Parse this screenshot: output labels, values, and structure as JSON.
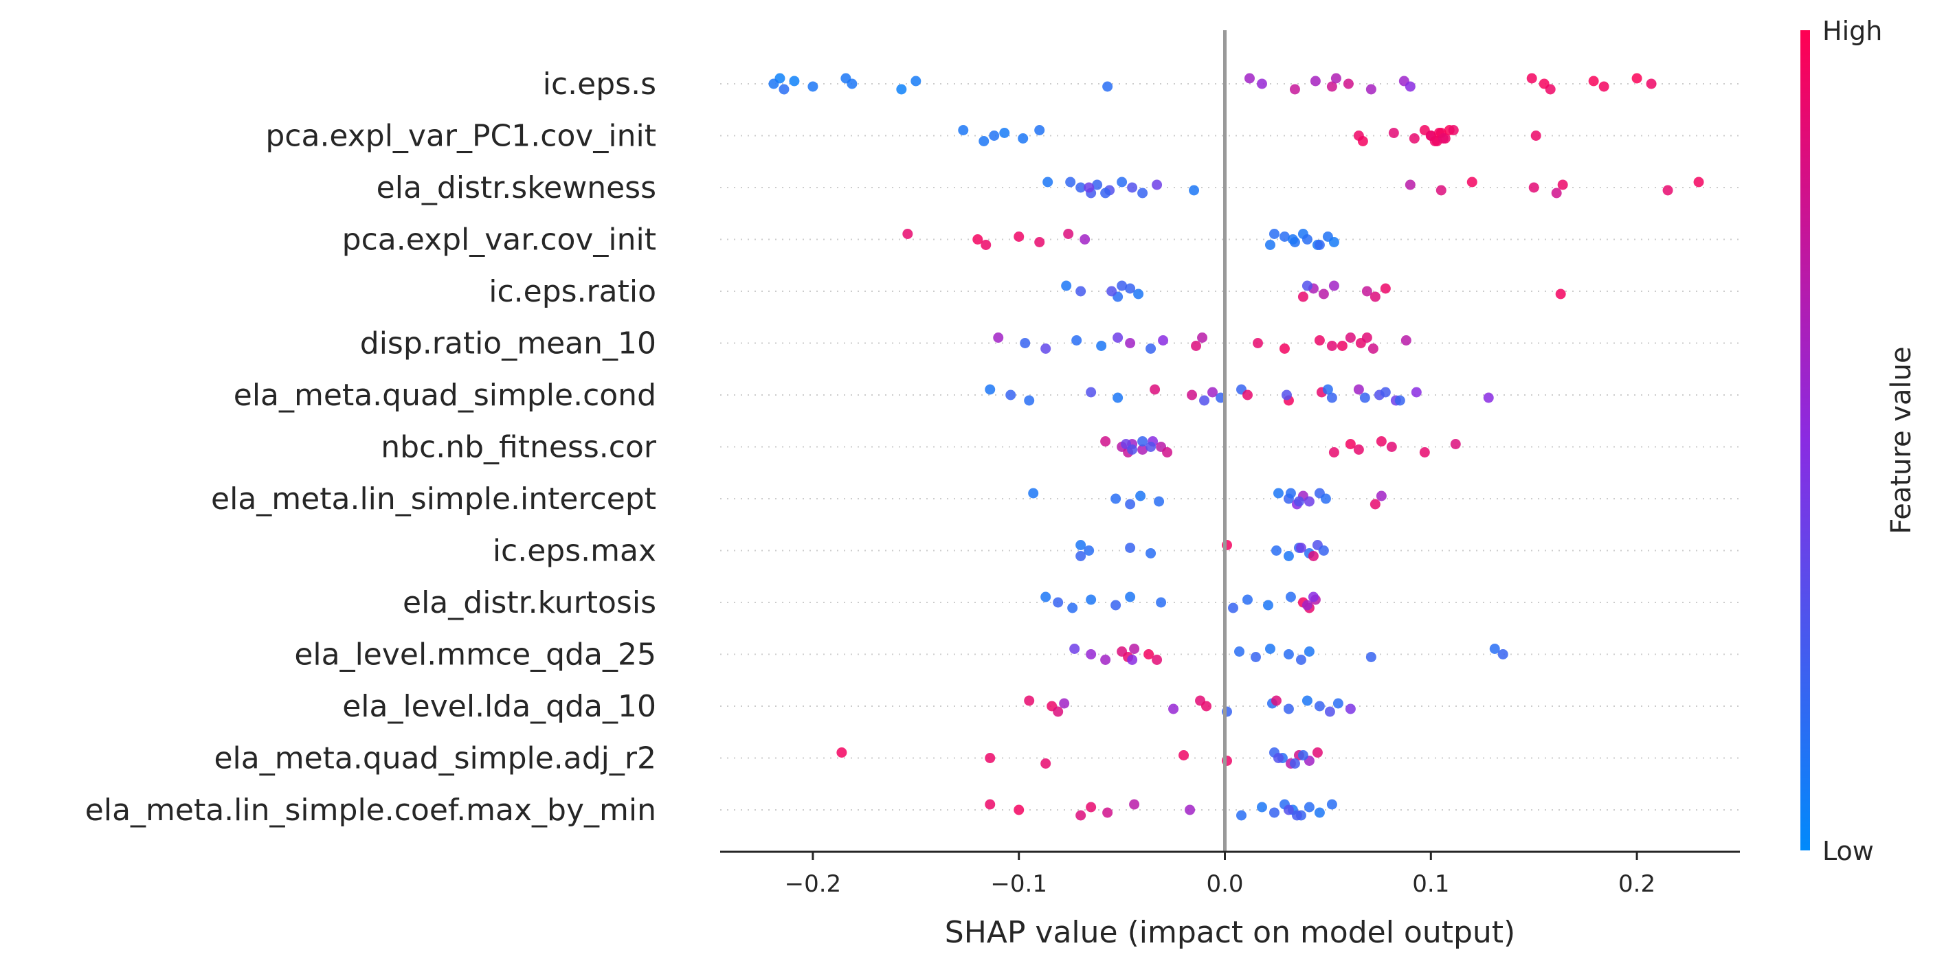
{
  "chart_data": {
    "type": "scatter",
    "subtype": "shap-beeswarm",
    "title": "",
    "xlabel": "SHAP value (impact on model output)",
    "xlim": [
      -0.245,
      0.25
    ],
    "xticks": [
      -0.2,
      -0.1,
      0.0,
      0.1,
      0.2
    ],
    "xtick_labels": [
      "−0.2",
      "−0.1",
      "0.0",
      "0.1",
      "0.2"
    ],
    "zero_line": true,
    "grid": false,
    "colorbar": {
      "title": "Feature value",
      "high_label": "High",
      "low_label": "Low",
      "low_color": "#008afb",
      "mid_color": "#8a2be2",
      "high_color": "#ff0052"
    },
    "features": [
      {
        "name": "ic.eps.s",
        "points": [
          [
            -0.216,
            0.05
          ],
          [
            -0.219,
            0.1
          ],
          [
            -0.214,
            0.15
          ],
          [
            -0.209,
            0.05
          ],
          [
            -0.2,
            0.1
          ],
          [
            -0.184,
            0.1
          ],
          [
            -0.181,
            0.1
          ],
          [
            -0.157,
            0.05
          ],
          [
            -0.15,
            0.08
          ],
          [
            -0.057,
            0.15
          ],
          [
            0.012,
            0.6
          ],
          [
            0.018,
            0.55
          ],
          [
            0.034,
            0.75
          ],
          [
            0.044,
            0.62
          ],
          [
            0.052,
            0.78
          ],
          [
            0.054,
            0.66
          ],
          [
            0.06,
            0.8
          ],
          [
            0.071,
            0.62
          ],
          [
            0.087,
            0.58
          ],
          [
            0.09,
            0.5
          ],
          [
            0.149,
            0.95
          ],
          [
            0.155,
            0.96
          ],
          [
            0.158,
            0.93
          ],
          [
            0.179,
            0.97
          ],
          [
            0.184,
            0.95
          ],
          [
            0.2,
            0.98
          ],
          [
            0.207,
            0.93
          ]
        ]
      },
      {
        "name": "pca.expl_var_PC1.cov_init",
        "points": [
          [
            -0.127,
            0.1
          ],
          [
            -0.112,
            0.12
          ],
          [
            -0.117,
            0.1
          ],
          [
            -0.107,
            0.08
          ],
          [
            -0.098,
            0.1
          ],
          [
            -0.09,
            0.12
          ],
          [
            0.065,
            0.93
          ],
          [
            0.067,
            0.95
          ],
          [
            0.082,
            0.88
          ],
          [
            0.092,
            0.9
          ],
          [
            0.097,
            0.95
          ],
          [
            0.1,
            0.92
          ],
          [
            0.103,
            0.94
          ],
          [
            0.105,
            0.96
          ],
          [
            0.107,
            0.92
          ],
          [
            0.109,
            0.98
          ],
          [
            0.1,
            0.91
          ],
          [
            0.102,
            0.93
          ],
          [
            0.104,
            0.95
          ],
          [
            0.106,
            0.9
          ],
          [
            0.111,
            0.92
          ],
          [
            0.151,
            0.92
          ]
        ]
      },
      {
        "name": "ela_distr.skewness",
        "points": [
          [
            -0.086,
            0.1
          ],
          [
            -0.07,
            0.2
          ],
          [
            -0.065,
            0.25
          ],
          [
            -0.062,
            0.2
          ],
          [
            -0.056,
            0.3
          ],
          [
            -0.05,
            0.15
          ],
          [
            -0.045,
            0.3
          ],
          [
            -0.04,
            0.2
          ],
          [
            -0.033,
            0.4
          ],
          [
            -0.015,
            0.1
          ],
          [
            -0.075,
            0.18
          ],
          [
            -0.066,
            0.4
          ],
          [
            -0.058,
            0.2
          ],
          [
            0.09,
            0.7
          ],
          [
            0.105,
            0.85
          ],
          [
            0.12,
            0.95
          ],
          [
            0.15,
            0.88
          ],
          [
            0.161,
            0.8
          ],
          [
            0.164,
            0.92
          ],
          [
            0.215,
            0.9
          ],
          [
            0.23,
            0.95
          ]
        ]
      },
      {
        "name": "pca.expl_var.cov_init",
        "points": [
          [
            -0.154,
            0.9
          ],
          [
            -0.12,
            0.95
          ],
          [
            -0.116,
            0.92
          ],
          [
            -0.1,
            0.93
          ],
          [
            -0.09,
            0.9
          ],
          [
            -0.076,
            0.85
          ],
          [
            -0.068,
            0.6
          ],
          [
            0.022,
            0.1
          ],
          [
            0.029,
            0.15
          ],
          [
            0.034,
            0.12
          ],
          [
            0.038,
            0.1
          ],
          [
            0.04,
            0.15
          ],
          [
            0.045,
            0.1
          ],
          [
            0.05,
            0.12
          ],
          [
            0.053,
            0.08
          ],
          [
            0.024,
            0.15
          ],
          [
            0.033,
            0.1
          ],
          [
            0.046,
            0.18
          ]
        ]
      },
      {
        "name": "ic.eps.ratio",
        "points": [
          [
            -0.077,
            0.1
          ],
          [
            -0.07,
            0.25
          ],
          [
            -0.052,
            0.15
          ],
          [
            -0.046,
            0.2
          ],
          [
            -0.042,
            0.1
          ],
          [
            -0.05,
            0.22
          ],
          [
            -0.055,
            0.3
          ],
          [
            0.038,
            0.9
          ],
          [
            0.043,
            0.65
          ],
          [
            0.048,
            0.7
          ],
          [
            0.053,
            0.6
          ],
          [
            0.069,
            0.75
          ],
          [
            0.073,
            0.85
          ],
          [
            0.078,
            0.92
          ],
          [
            0.163,
            0.95
          ],
          [
            0.04,
            0.3
          ]
        ]
      },
      {
        "name": "disp.ratio_mean_10",
        "points": [
          [
            -0.11,
            0.6
          ],
          [
            -0.097,
            0.2
          ],
          [
            -0.087,
            0.35
          ],
          [
            -0.072,
            0.15
          ],
          [
            -0.06,
            0.1
          ],
          [
            -0.052,
            0.4
          ],
          [
            -0.046,
            0.6
          ],
          [
            -0.036,
            0.2
          ],
          [
            -0.03,
            0.5
          ],
          [
            -0.014,
            0.85
          ],
          [
            -0.011,
            0.7
          ],
          [
            0.016,
            0.9
          ],
          [
            0.029,
            0.95
          ],
          [
            0.046,
            0.92
          ],
          [
            0.052,
            0.88
          ],
          [
            0.061,
            0.85
          ],
          [
            0.066,
            0.9
          ],
          [
            0.072,
            0.8
          ],
          [
            0.088,
            0.7
          ],
          [
            0.057,
            0.93
          ],
          [
            0.069,
            0.87
          ]
        ]
      },
      {
        "name": "ela_meta.quad_simple.cond",
        "points": [
          [
            -0.114,
            0.1
          ],
          [
            -0.104,
            0.2
          ],
          [
            -0.095,
            0.15
          ],
          [
            -0.065,
            0.3
          ],
          [
            -0.052,
            0.1
          ],
          [
            -0.034,
            0.85
          ],
          [
            -0.016,
            0.8
          ],
          [
            -0.01,
            0.3
          ],
          [
            -0.006,
            0.6
          ],
          [
            -0.002,
            0.2
          ],
          [
            0.008,
            0.2
          ],
          [
            0.011,
            0.9
          ],
          [
            0.031,
            0.95
          ],
          [
            0.047,
            0.9
          ],
          [
            0.052,
            0.2
          ],
          [
            0.065,
            0.6
          ],
          [
            0.075,
            0.3
          ],
          [
            0.083,
            0.4
          ],
          [
            0.093,
            0.5
          ],
          [
            0.128,
            0.5
          ],
          [
            0.05,
            0.15
          ],
          [
            0.03,
            0.3
          ],
          [
            0.085,
            0.2
          ],
          [
            0.078,
            0.25
          ],
          [
            0.068,
            0.2
          ]
        ]
      },
      {
        "name": "nbc.nb_fitness.cor",
        "points": [
          [
            -0.058,
            0.8
          ],
          [
            -0.05,
            0.7
          ],
          [
            -0.047,
            0.75
          ],
          [
            -0.045,
            0.6
          ],
          [
            -0.04,
            0.65
          ],
          [
            -0.035,
            0.5
          ],
          [
            -0.031,
            0.7
          ],
          [
            -0.028,
            0.8
          ],
          [
            -0.048,
            0.4
          ],
          [
            -0.045,
            0.3
          ],
          [
            -0.04,
            0.2
          ],
          [
            -0.036,
            0.3
          ],
          [
            0.053,
            0.9
          ],
          [
            0.061,
            0.95
          ],
          [
            0.065,
            0.9
          ],
          [
            0.076,
            0.92
          ],
          [
            0.081,
            0.88
          ],
          [
            0.097,
            0.9
          ],
          [
            0.112,
            0.85
          ]
        ]
      },
      {
        "name": "ela_meta.lin_simple.intercept",
        "points": [
          [
            -0.093,
            0.1
          ],
          [
            -0.053,
            0.15
          ],
          [
            -0.046,
            0.2
          ],
          [
            -0.041,
            0.1
          ],
          [
            -0.032,
            0.15
          ],
          [
            0.026,
            0.1
          ],
          [
            0.031,
            0.2
          ],
          [
            0.035,
            0.5
          ],
          [
            0.038,
            0.6
          ],
          [
            0.041,
            0.4
          ],
          [
            0.046,
            0.2
          ],
          [
            0.049,
            0.15
          ],
          [
            0.073,
            0.9
          ],
          [
            0.076,
            0.6
          ],
          [
            0.036,
            0.3
          ],
          [
            0.032,
            0.15
          ]
        ]
      },
      {
        "name": "ic.eps.max",
        "points": [
          [
            -0.07,
            0.1
          ],
          [
            -0.066,
            0.15
          ],
          [
            -0.07,
            0.2
          ],
          [
            -0.046,
            0.2
          ],
          [
            -0.036,
            0.15
          ],
          [
            0.001,
            0.95
          ],
          [
            0.025,
            0.15
          ],
          [
            0.031,
            0.1
          ],
          [
            0.036,
            0.2
          ],
          [
            0.041,
            0.15
          ],
          [
            0.045,
            0.3
          ],
          [
            0.048,
            0.2
          ],
          [
            0.043,
            0.85
          ],
          [
            0.037,
            0.4
          ]
        ]
      },
      {
        "name": "ela_distr.kurtosis",
        "points": [
          [
            -0.087,
            0.1
          ],
          [
            -0.081,
            0.2
          ],
          [
            -0.074,
            0.15
          ],
          [
            -0.065,
            0.1
          ],
          [
            -0.053,
            0.2
          ],
          [
            -0.046,
            0.1
          ],
          [
            -0.031,
            0.15
          ],
          [
            0.004,
            0.2
          ],
          [
            0.011,
            0.15
          ],
          [
            0.021,
            0.1
          ],
          [
            0.032,
            0.15
          ],
          [
            0.038,
            0.95
          ],
          [
            0.041,
            0.9
          ],
          [
            0.044,
            0.7
          ],
          [
            0.04,
            0.6
          ],
          [
            0.043,
            0.5
          ]
        ]
      },
      {
        "name": "ela_level.mmce_qda_25",
        "points": [
          [
            -0.073,
            0.4
          ],
          [
            -0.065,
            0.55
          ],
          [
            -0.058,
            0.6
          ],
          [
            -0.05,
            0.85
          ],
          [
            -0.047,
            0.9
          ],
          [
            -0.044,
            0.7
          ],
          [
            -0.037,
            0.95
          ],
          [
            -0.033,
            0.88
          ],
          [
            0.007,
            0.15
          ],
          [
            0.015,
            0.2
          ],
          [
            0.022,
            0.1
          ],
          [
            0.031,
            0.15
          ],
          [
            0.037,
            0.2
          ],
          [
            0.041,
            0.1
          ],
          [
            0.071,
            0.2
          ],
          [
            0.131,
            0.15
          ],
          [
            0.135,
            0.2
          ],
          [
            -0.045,
            0.5
          ]
        ]
      },
      {
        "name": "ela_level.lda_qda_10",
        "points": [
          [
            -0.095,
            0.9
          ],
          [
            -0.084,
            0.92
          ],
          [
            -0.081,
            0.85
          ],
          [
            -0.078,
            0.6
          ],
          [
            -0.025,
            0.55
          ],
          [
            -0.012,
            0.88
          ],
          [
            -0.009,
            0.9
          ],
          [
            0.001,
            0.2
          ],
          [
            0.023,
            0.15
          ],
          [
            0.031,
            0.2
          ],
          [
            0.04,
            0.1
          ],
          [
            0.046,
            0.2
          ],
          [
            0.051,
            0.3
          ],
          [
            0.055,
            0.15
          ],
          [
            0.061,
            0.45
          ],
          [
            0.025,
            0.85
          ]
        ]
      },
      {
        "name": "ela_meta.quad_simple.adj_r2",
        "points": [
          [
            -0.186,
            0.95
          ],
          [
            -0.114,
            0.92
          ],
          [
            -0.087,
            0.9
          ],
          [
            -0.02,
            0.93
          ],
          [
            0.001,
            0.92
          ],
          [
            0.024,
            0.2
          ],
          [
            0.028,
            0.15
          ],
          [
            0.032,
            0.7
          ],
          [
            0.036,
            0.8
          ],
          [
            0.041,
            0.6
          ],
          [
            0.045,
            0.88
          ],
          [
            0.026,
            0.3
          ],
          [
            0.034,
            0.25
          ],
          [
            0.038,
            0.2
          ]
        ]
      },
      {
        "name": "ela_meta.lin_simple.coef.max_by_min",
        "points": [
          [
            -0.114,
            0.92
          ],
          [
            -0.1,
            0.95
          ],
          [
            -0.07,
            0.85
          ],
          [
            -0.065,
            0.9
          ],
          [
            -0.057,
            0.8
          ],
          [
            -0.044,
            0.7
          ],
          [
            -0.017,
            0.6
          ],
          [
            0.008,
            0.15
          ],
          [
            0.018,
            0.1
          ],
          [
            0.024,
            0.2
          ],
          [
            0.029,
            0.15
          ],
          [
            0.033,
            0.1
          ],
          [
            0.037,
            0.2
          ],
          [
            0.041,
            0.15
          ],
          [
            0.046,
            0.1
          ],
          [
            0.052,
            0.15
          ],
          [
            0.031,
            0.3
          ],
          [
            0.035,
            0.25
          ]
        ]
      }
    ]
  }
}
